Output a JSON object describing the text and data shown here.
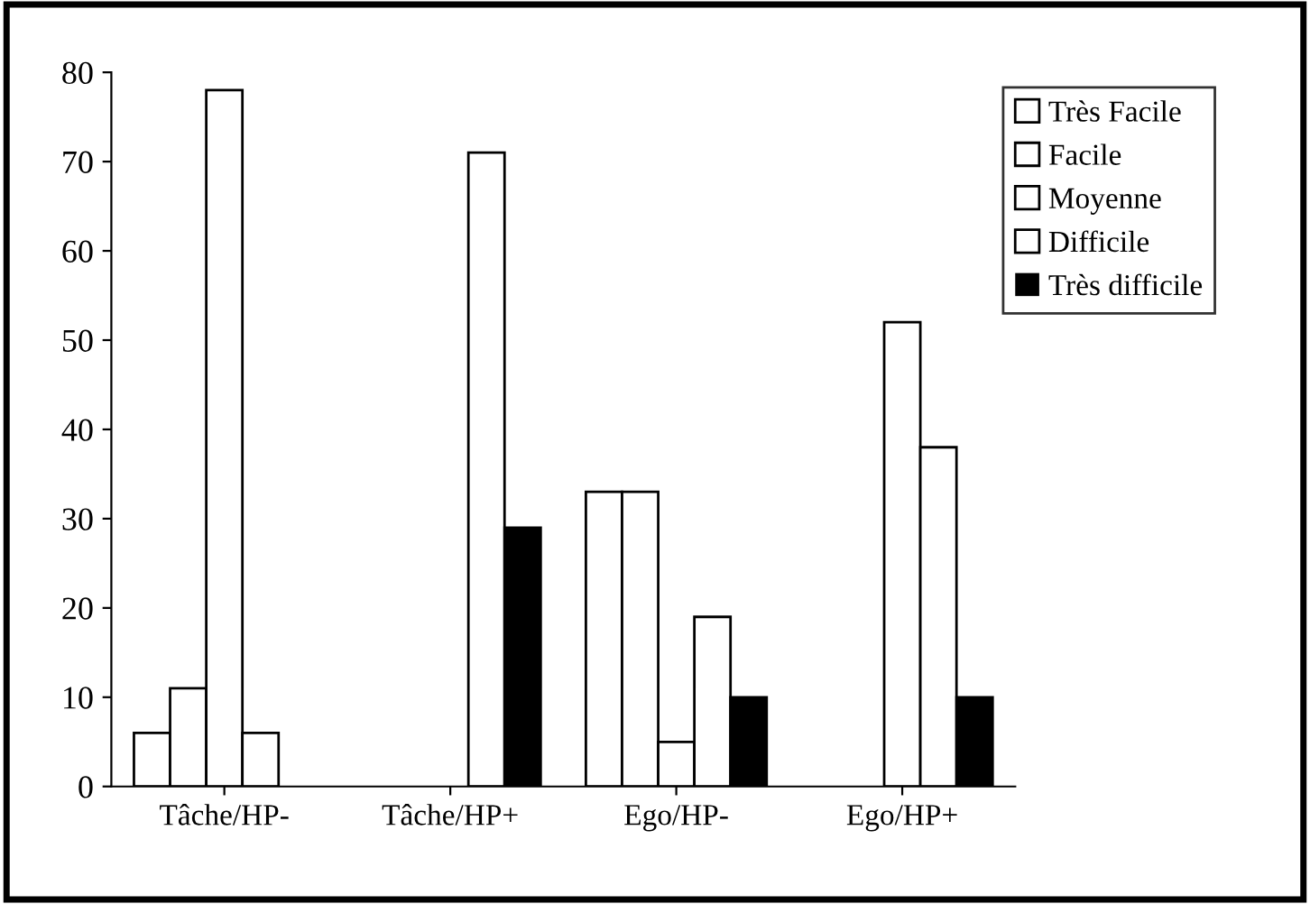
{
  "chart_data": {
    "type": "bar",
    "categories": [
      "Tâche/HP-",
      "Tâche/HP+",
      "Ego/HP-",
      "Ego/HP+"
    ],
    "series": [
      {
        "name": "Très Facile",
        "color": "#ffffff",
        "values": [
          6,
          0,
          33,
          0
        ]
      },
      {
        "name": "Facile",
        "color": "#ffffff",
        "values": [
          11,
          0,
          33,
          0
        ]
      },
      {
        "name": "Moyenne",
        "color": "#ffffff",
        "values": [
          78,
          0,
          5,
          52
        ]
      },
      {
        "name": "Difficile",
        "color": "#ffffff",
        "values": [
          6,
          71,
          19,
          38
        ]
      },
      {
        "name": "Très difficile",
        "color": "#000000",
        "values": [
          0,
          29,
          10,
          10
        ]
      }
    ],
    "ylim": [
      0,
      80
    ],
    "yticks": [
      0,
      10,
      20,
      30,
      40,
      50,
      60,
      70,
      80
    ],
    "grid": false,
    "legend": "top right"
  }
}
